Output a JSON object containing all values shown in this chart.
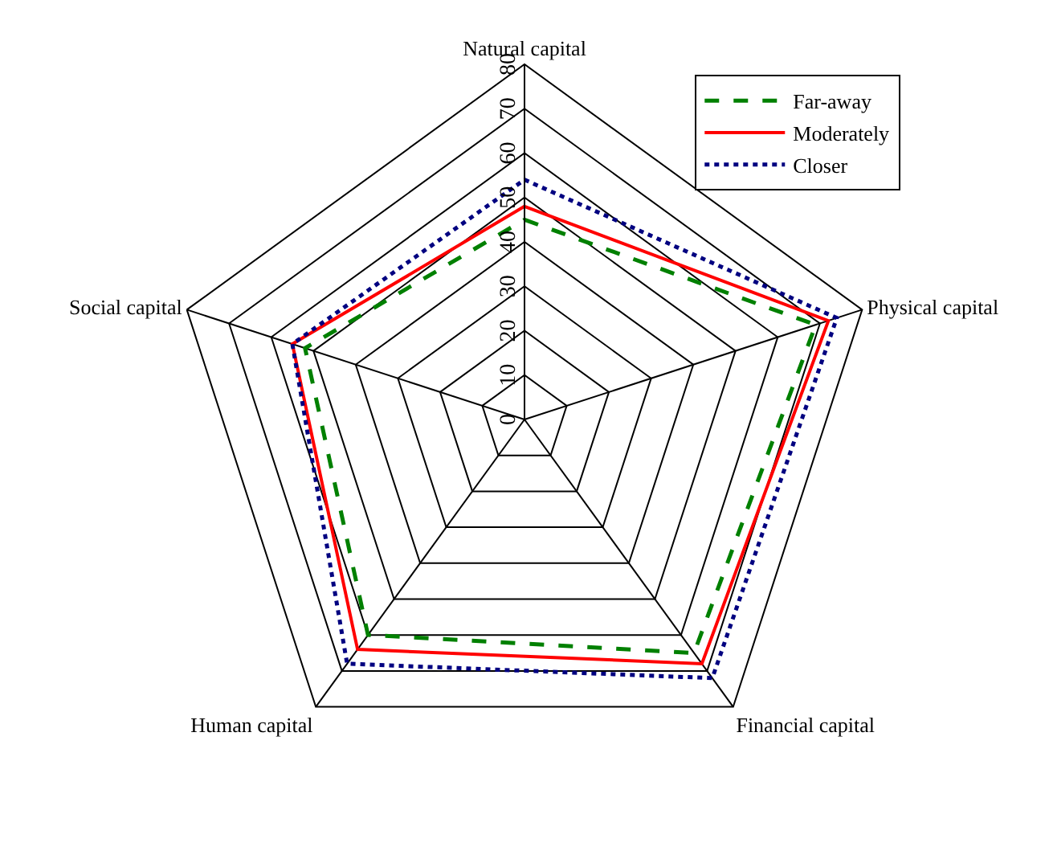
{
  "chart_data": {
    "type": "radar",
    "categories": [
      "Natural capital",
      "Physical capital",
      "Financial capital",
      "Human capital",
      "Social capital"
    ],
    "series": [
      {
        "name": "Far-away",
        "color": "#008000",
        "line_style": "dashed",
        "values": [
          45,
          69,
          65,
          60,
          52
        ]
      },
      {
        "name": "Moderately",
        "color": "#ff0000",
        "line_style": "solid",
        "values": [
          48,
          72,
          68,
          64,
          55
        ]
      },
      {
        "name": "Closer",
        "color": "#000080",
        "line_style": "dotted",
        "values": [
          54,
          74,
          72,
          68,
          55
        ]
      }
    ],
    "ylim": [
      0,
      80
    ],
    "yticks": [
      0,
      10,
      20,
      30,
      40,
      50,
      60,
      70,
      80
    ],
    "grid": true,
    "legend": "top right",
    "marker": "none"
  }
}
